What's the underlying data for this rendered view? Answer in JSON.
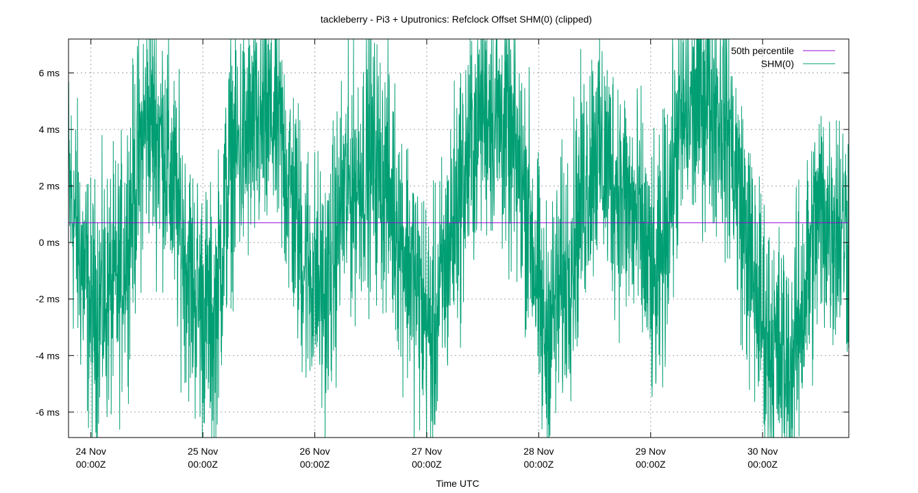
{
  "chart_data": {
    "type": "line",
    "title": "tackleberry - Pi3 + Uputronics: Refclock Offset SHM(0) (clipped)",
    "xlabel": "Time UTC",
    "ylabel": "",
    "y_unit": "ms",
    "ylim": [
      -6.9,
      7.2
    ],
    "xlim_days": [
      23.8,
      30.77
    ],
    "grid": true,
    "legend_position": "top-right",
    "y_ticks": [
      {
        "value": 6,
        "label": "6 ms"
      },
      {
        "value": 4,
        "label": "4 ms"
      },
      {
        "value": 2,
        "label": "2 ms"
      },
      {
        "value": 0,
        "label": "0 ms"
      },
      {
        "value": -2,
        "label": "-2 ms"
      },
      {
        "value": -4,
        "label": "-4 ms"
      },
      {
        "value": -6,
        "label": "-6 ms"
      }
    ],
    "x_ticks": [
      {
        "value": 24,
        "line1": "24 Nov",
        "line2": "00:00Z"
      },
      {
        "value": 25,
        "line1": "25 Nov",
        "line2": "00:00Z"
      },
      {
        "value": 26,
        "line1": "26 Nov",
        "line2": "00:00Z"
      },
      {
        "value": 27,
        "line1": "27 Nov",
        "line2": "00:00Z"
      },
      {
        "value": 28,
        "line1": "28 Nov",
        "line2": "00:00Z"
      },
      {
        "value": 29,
        "line1": "29 Nov",
        "line2": "00:00Z"
      },
      {
        "value": 30,
        "line1": "30 Nov",
        "line2": "00:00Z"
      }
    ],
    "series": [
      {
        "name": "50th percentile",
        "color": "#9400d3",
        "kind": "constant",
        "value": 0.7
      },
      {
        "name": "SHM(0)",
        "color": "#009e73",
        "kind": "noisy-oscillation",
        "trend_days": [
          23.8,
          24.0,
          24.25,
          24.5,
          24.65,
          24.9,
          25.1,
          25.25,
          25.5,
          25.65,
          25.9,
          26.1,
          26.25,
          26.5,
          26.65,
          26.9,
          27.05,
          27.25,
          27.5,
          27.7,
          27.9,
          28.05,
          28.25,
          28.5,
          28.7,
          28.9,
          29.05,
          29.25,
          29.5,
          29.7,
          29.9,
          30.05,
          30.25,
          30.5,
          30.77
        ],
        "trend_ms": [
          2.0,
          -2.5,
          -1.5,
          4.5,
          3.5,
          -1.5,
          -3.0,
          3.0,
          4.0,
          4.5,
          -0.5,
          -2.0,
          1.5,
          3.0,
          2.0,
          -1.5,
          -3.5,
          1.0,
          5.0,
          4.0,
          1.5,
          -3.5,
          -1.0,
          3.5,
          2.0,
          0.5,
          -2.0,
          4.0,
          5.5,
          4.0,
          -1.0,
          -3.5,
          -4.5,
          1.0,
          0.5
        ],
        "noise_ms": 2.2
      }
    ]
  }
}
